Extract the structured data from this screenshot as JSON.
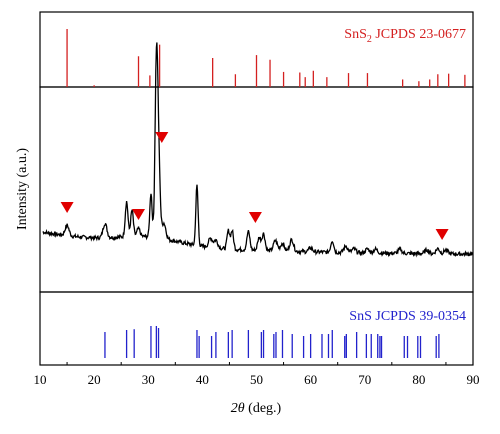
{
  "chart_data": [
    {
      "type": "bar",
      "panel": "reference-top",
      "label_main": "SnS",
      "label_sub": "2",
      "label_rest": " JCPDS 23-0677",
      "color": "#d42020",
      "xlim": [
        10,
        90
      ],
      "ylim": [
        0,
        100
      ],
      "x": [
        15.0,
        20.0,
        28.2,
        30.3,
        32.1,
        41.9,
        46.1,
        50.0,
        52.5,
        55.0,
        58.0,
        59.0,
        60.5,
        63.0,
        67.0,
        70.5,
        77.0,
        80.0,
        82.0,
        83.5,
        85.5,
        88.5
      ],
      "values": [
        100,
        3,
        53,
        20,
        73,
        50,
        22,
        55,
        47,
        26,
        25,
        17,
        28,
        17,
        24,
        24,
        13,
        10,
        13,
        22,
        23,
        21
      ]
    },
    {
      "type": "line",
      "panel": "measured-middle",
      "ylabel": "Intensity (a.u.)",
      "color": "#000000",
      "xlim": [
        10,
        90
      ],
      "ylim": [
        0,
        100
      ],
      "peaks": [
        {
          "x": 15.0,
          "h": 8,
          "w": 0.5
        },
        {
          "x": 22.0,
          "h": 11,
          "w": 0.5
        },
        {
          "x": 26.0,
          "h": 27,
          "w": 0.35
        },
        {
          "x": 27.0,
          "h": 20,
          "w": 0.35
        },
        {
          "x": 28.2,
          "h": 6,
          "w": 0.4
        },
        {
          "x": 30.5,
          "h": 34,
          "w": 0.3
        },
        {
          "x": 31.5,
          "h": 125,
          "w": 0.35
        },
        {
          "x": 31.9,
          "h": 60,
          "w": 0.4
        },
        {
          "x": 32.9,
          "h": 12,
          "w": 0.5
        },
        {
          "x": 39.0,
          "h": 46,
          "w": 0.3
        },
        {
          "x": 41.5,
          "h": 7,
          "w": 0.5
        },
        {
          "x": 42.5,
          "h": 6,
          "w": 0.5
        },
        {
          "x": 44.8,
          "h": 14,
          "w": 0.35
        },
        {
          "x": 45.5,
          "h": 14,
          "w": 0.35
        },
        {
          "x": 48.5,
          "h": 14,
          "w": 0.4
        },
        {
          "x": 50.5,
          "h": 10,
          "w": 0.4
        },
        {
          "x": 51.3,
          "h": 13,
          "w": 0.4
        },
        {
          "x": 53.5,
          "h": 8,
          "w": 0.5
        },
        {
          "x": 54.8,
          "h": 6,
          "w": 0.5
        },
        {
          "x": 56.5,
          "h": 9,
          "w": 0.5
        },
        {
          "x": 60.0,
          "h": 3,
          "w": 0.5
        },
        {
          "x": 64.0,
          "h": 9,
          "w": 0.4
        },
        {
          "x": 66.5,
          "h": 5,
          "w": 0.5
        },
        {
          "x": 68.0,
          "h": 3,
          "w": 0.5
        },
        {
          "x": 70.5,
          "h": 3,
          "w": 0.5
        },
        {
          "x": 72.0,
          "h": 3,
          "w": 0.5
        },
        {
          "x": 76.5,
          "h": 3,
          "w": 0.5
        },
        {
          "x": 81.5,
          "h": 3,
          "w": 0.5
        },
        {
          "x": 83.5,
          "h": 4,
          "w": 0.5
        },
        {
          "x": 85.0,
          "h": 3,
          "w": 0.5
        }
      ],
      "markers": {
        "color": "#e00000",
        "x": [
          15.0,
          28.2,
          32.5,
          49.8,
          84.3
        ]
      }
    },
    {
      "type": "bar",
      "panel": "reference-bottom",
      "label": "SnS JCPDS 39-0354",
      "color": "#2222cc",
      "xlabel": "2θ (deg.)",
      "xlim": [
        10,
        90
      ],
      "ylim": [
        0,
        100
      ],
      "x": [
        22.0,
        26.0,
        27.4,
        30.5,
        31.5,
        31.9,
        39.0,
        39.4,
        41.7,
        42.5,
        44.8,
        45.5,
        48.5,
        50.9,
        51.3,
        53.2,
        53.6,
        54.8,
        56.6,
        58.7,
        60.0,
        62.1,
        63.3,
        64.0,
        66.3,
        66.6,
        68.5,
        70.3,
        71.2,
        72.4,
        72.8,
        73.1,
        77.3,
        77.9,
        79.8,
        80.3,
        83.2,
        83.7
      ],
      "values": [
        65,
        70,
        72,
        80,
        80,
        75,
        70,
        55,
        55,
        65,
        65,
        70,
        70,
        65,
        70,
        60,
        65,
        70,
        60,
        55,
        60,
        60,
        60,
        70,
        55,
        60,
        65,
        60,
        60,
        60,
        55,
        55,
        55,
        55,
        55,
        55,
        55,
        60
      ]
    }
  ],
  "x_axis": {
    "ticks": [
      "10",
      "20",
      "30",
      "40",
      "50",
      "60",
      "70",
      "80",
      "90"
    ],
    "label_italic": "2θ",
    "label_rest": " (deg.)"
  },
  "y_axis": {
    "label": "Intensity (a.u.)"
  }
}
